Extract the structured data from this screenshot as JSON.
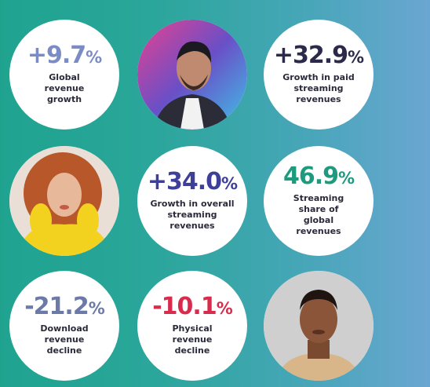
{
  "stats": {
    "global_revenue": {
      "value": "+9.7",
      "unit": "%",
      "label": "Global revenue growth",
      "color": "#7b8cc4"
    },
    "paid_streaming": {
      "value": "+32.9",
      "unit": "%",
      "label": "Growth in paid streaming revenues",
      "color": "#2c2a4a"
    },
    "overall_streaming": {
      "value": "+34.0",
      "unit": "%",
      "label": "Growth in overall streaming revenues",
      "color": "#3e3f99"
    },
    "streaming_share": {
      "value": "46.9",
      "unit": "%",
      "label": "Streaming share of global revenues",
      "color": "#1e9b7e"
    },
    "download_decline": {
      "value": "-21.2",
      "unit": "%",
      "label": "Download revenue decline",
      "color": "#6b7aa8"
    },
    "physical_decline": {
      "value": "-10.1",
      "unit": "%",
      "label": "Physical revenue decline",
      "color": "#d92b4b"
    }
  },
  "photos": {
    "artist_1": "male artist portrait with neon lighting",
    "artist_2": "female artist portrait with curly red hair in yellow jacket",
    "artist_3": "male artist portrait on grey background"
  }
}
